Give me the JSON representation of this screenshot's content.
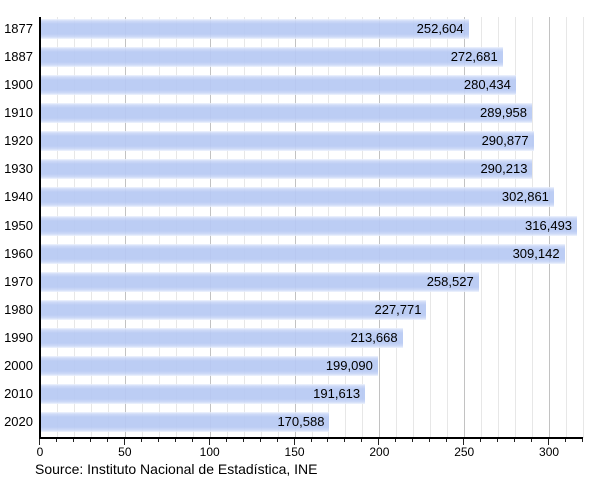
{
  "chart_data": {
    "type": "bar",
    "orientation": "horizontal",
    "title": "",
    "categories": [
      "1877",
      "1887",
      "1900",
      "1910",
      "1920",
      "1930",
      "1940",
      "1950",
      "1960",
      "1970",
      "1980",
      "1990",
      "2000",
      "2010",
      "2020"
    ],
    "values": [
      252604,
      272681,
      280434,
      289958,
      290877,
      290213,
      302861,
      316493,
      309142,
      258527,
      227771,
      213668,
      199090,
      191613,
      170588
    ],
    "value_labels": [
      "252,604",
      "272,681",
      "280,434",
      "289,958",
      "290,877",
      "290,213",
      "302,861",
      "316,493",
      "309,142",
      "258,527",
      "227,771",
      "213,668",
      "199,090",
      "191,613",
      "170,588"
    ],
    "x_tick_labels": [
      "0",
      "50",
      "100",
      "150",
      "200",
      "250",
      "300"
    ],
    "x_major_ticks": [
      0,
      50,
      100,
      150,
      200,
      250,
      300
    ],
    "x_minor_step": 10,
    "xlim": [
      0,
      320
    ],
    "axis_unit": "thousands",
    "grid": true,
    "legend": "none",
    "bar_color": "#b7c9f3",
    "bar_edge_highlight": "#eef3fd",
    "grid_minor_color": "#e7e7e7",
    "grid_major_color": "#c2c2c2",
    "axis_color": "#000000",
    "source": "Source: Instituto Nacional de Estadística, INE"
  }
}
